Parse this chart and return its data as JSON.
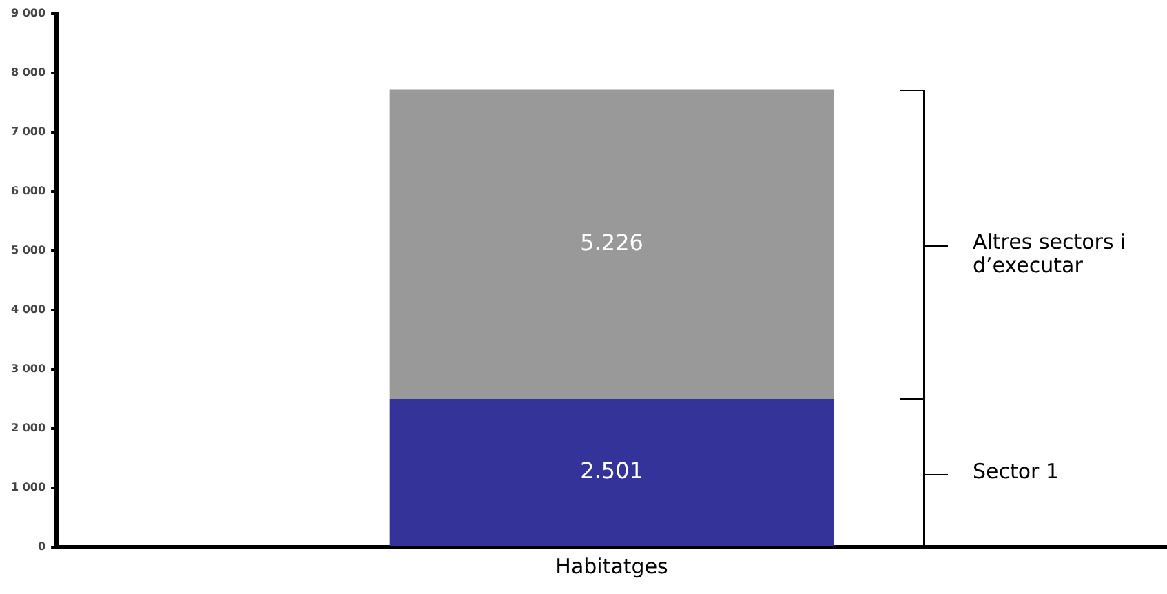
{
  "chart_data": {
    "type": "bar",
    "stacked": true,
    "categories": [
      "Habitatges"
    ],
    "series": [
      {
        "name": "Sector 1",
        "color": "#333399",
        "values": [
          2501
        ],
        "value_labels": [
          "2.501"
        ]
      },
      {
        "name": "Altres sectors i d’executar",
        "color": "#999999",
        "values": [
          5226
        ],
        "value_labels": [
          "5.226"
        ]
      }
    ],
    "ylim": [
      0,
      9000
    ],
    "yticks": [
      0,
      {
        "value": 1000,
        "label": "1 000"
      },
      {
        "value": 2000,
        "label": "2 000"
      },
      {
        "value": 3000,
        "label": "3 000"
      },
      {
        "value": 4000,
        "label": "4 000"
      },
      {
        "value": 5000,
        "label": "5 000"
      },
      {
        "value": 6000,
        "label": "6 000"
      },
      {
        "value": 7000,
        "label": "7 000"
      },
      {
        "value": 8000,
        "label": "8 000"
      },
      {
        "value": 9000,
        "label": "9 000"
      }
    ],
    "grid": false,
    "legend": false
  }
}
